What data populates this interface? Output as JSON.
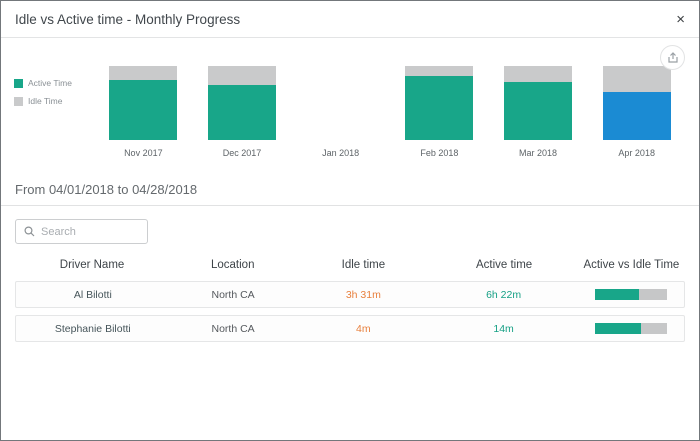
{
  "modal": {
    "title": "Idle vs Active time - Monthly Progress",
    "close_label": "×"
  },
  "colors": {
    "active_teal": "#18a689",
    "idle_gray": "#c9cacb",
    "selected_blue": "#1b8bd3",
    "idle_text_orange": "#e8813f",
    "active_text_teal": "#16a085"
  },
  "chart_data": {
    "type": "bar",
    "stacked": true,
    "unit": "percent",
    "categories": [
      "Nov 2017",
      "Dec 2017",
      "Jan 2018",
      "Feb 2018",
      "Mar 2018",
      "Apr 2018"
    ],
    "series": [
      {
        "name": "Active Time",
        "values": [
          81,
          74,
          0,
          86,
          79,
          65
        ]
      },
      {
        "name": "Idle Time",
        "values": [
          19,
          26,
          0,
          14,
          21,
          35
        ]
      }
    ],
    "highlighted_category": "Apr 2018",
    "highlight_color": "#1b8bd3",
    "colors": {
      "active": "#18a689",
      "idle": "#c9cacb"
    },
    "ylim": [
      0,
      100
    ],
    "legend_position": "left",
    "grid": false,
    "title": "Idle vs Active time - Monthly Progress"
  },
  "legend": [
    {
      "label": "Active Time",
      "color": "#18a689"
    },
    {
      "label": "Idle Time",
      "color": "#c9cacb"
    }
  ],
  "range_title": "From 04/01/2018 to 04/28/2018",
  "search": {
    "placeholder": "Search"
  },
  "table": {
    "headers": [
      "Driver Name",
      "Location",
      "Idle time",
      "Active time",
      "Active vs Idle Time"
    ],
    "rows": [
      {
        "driver": "Al Bilotti",
        "location": "North CA",
        "idle": "3h 31m",
        "active": "6h 22m",
        "bar_pct": 62
      },
      {
        "driver": "Stephanie Bilotti",
        "location": "North CA",
        "idle": "4m",
        "active": "14m",
        "bar_pct": 64
      }
    ]
  }
}
